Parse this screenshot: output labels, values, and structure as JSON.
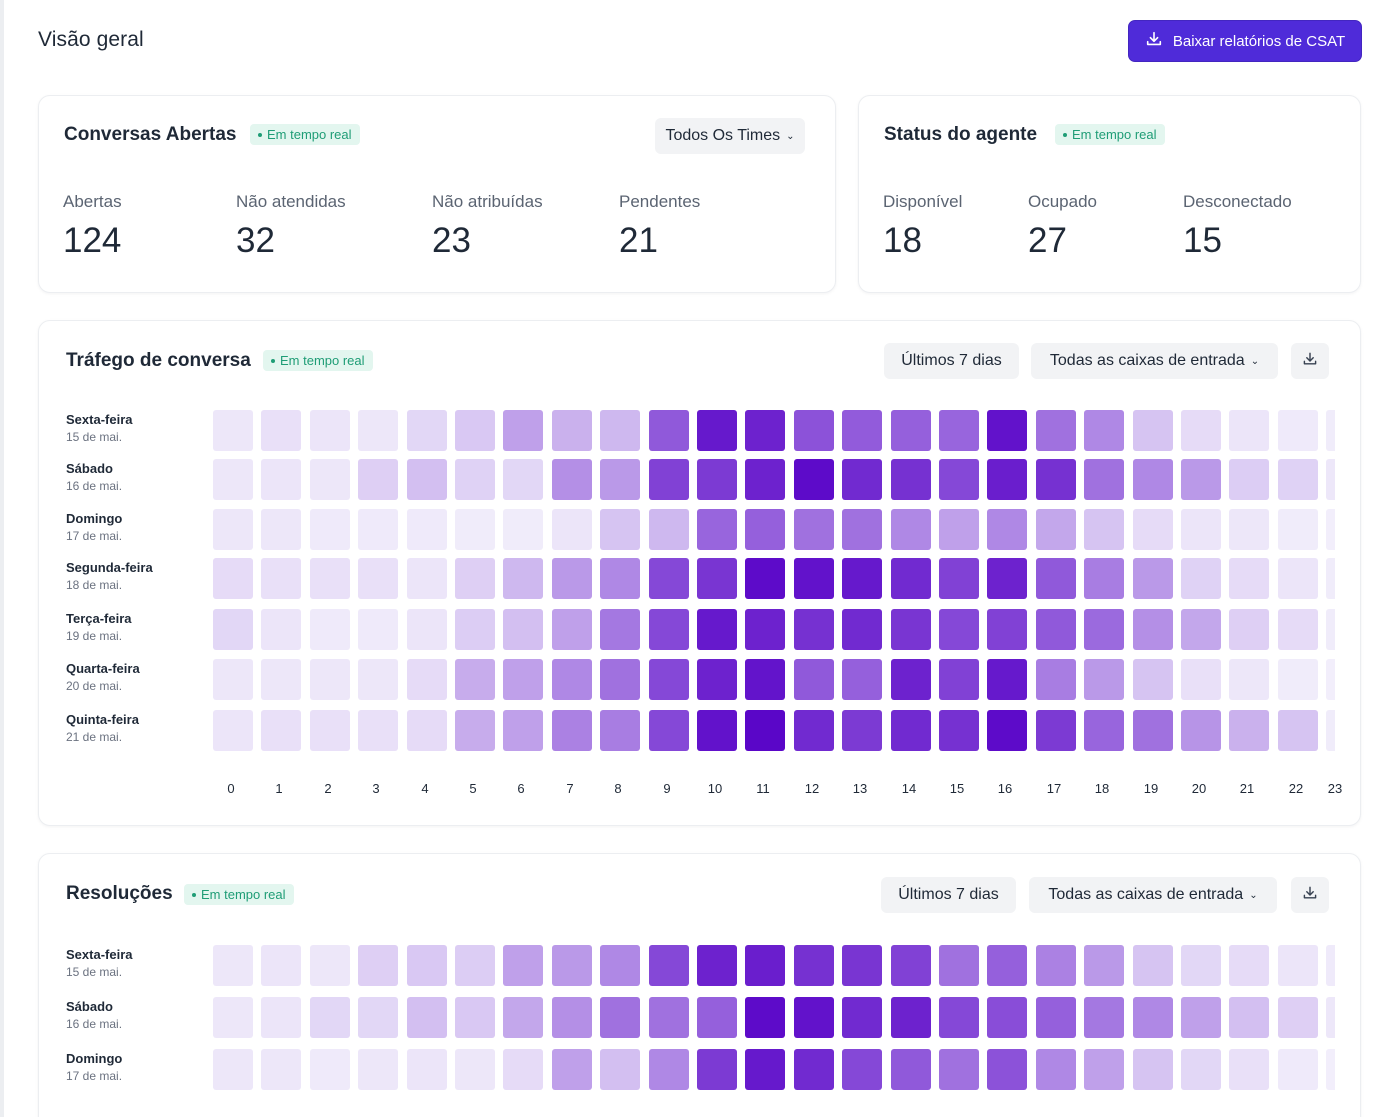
{
  "page": {
    "title": "Visão geral"
  },
  "header": {
    "download_button": "Baixar relatórios de CSAT"
  },
  "live_badge": "Em tempo real",
  "open_conversations": {
    "title": "Conversas Abertas",
    "team_filter": "Todos Os Times",
    "metrics": [
      {
        "label": "Abertas",
        "value": "124"
      },
      {
        "label": "Não atendidas",
        "value": "32"
      },
      {
        "label": "Não atribuídas",
        "value": "23"
      },
      {
        "label": "Pendentes",
        "value": "21"
      }
    ]
  },
  "agent_status": {
    "title": "Status do agente",
    "metrics": [
      {
        "label": "Disponível",
        "value": "18"
      },
      {
        "label": "Ocupado",
        "value": "27"
      },
      {
        "label": "Desconectado",
        "value": "15"
      }
    ]
  },
  "traffic": {
    "title": "Tráfego de conversa",
    "date_filter": "Últimos 7 dias",
    "inbox_filter": "Todas as caixas de entrada",
    "download_icon": "download-icon",
    "hours": [
      "0",
      "1",
      "2",
      "3",
      "4",
      "5",
      "6",
      "7",
      "8",
      "9",
      "10",
      "11",
      "12",
      "13",
      "14",
      "15",
      "16",
      "17",
      "18",
      "19",
      "20",
      "21",
      "22",
      "23"
    ],
    "rows": [
      {
        "day": "Sexta-feira",
        "date": "15 de mai.",
        "levels": [
          0.05,
          0.08,
          0.06,
          0.05,
          0.12,
          0.18,
          0.35,
          0.28,
          0.25,
          0.65,
          0.92,
          0.88,
          0.68,
          0.64,
          0.62,
          0.6,
          0.95,
          0.55,
          0.45,
          0.2,
          0.1,
          0.06,
          0.04,
          0.03
        ]
      },
      {
        "day": "Sábado",
        "date": "16 de mai.",
        "levels": [
          0.05,
          0.06,
          0.05,
          0.15,
          0.22,
          0.14,
          0.12,
          0.42,
          0.38,
          0.75,
          0.78,
          0.88,
          0.98,
          0.85,
          0.82,
          0.72,
          0.9,
          0.82,
          0.55,
          0.45,
          0.38,
          0.16,
          0.14,
          0.05
        ]
      },
      {
        "day": "Domingo",
        "date": "17 de mai.",
        "levels": [
          0.05,
          0.05,
          0.04,
          0.04,
          0.04,
          0.03,
          0.03,
          0.06,
          0.2,
          0.25,
          0.6,
          0.62,
          0.55,
          0.55,
          0.45,
          0.35,
          0.45,
          0.32,
          0.2,
          0.1,
          0.06,
          0.05,
          0.03,
          0.02
        ]
      },
      {
        "day": "Segunda-feira",
        "date": "18 de mai.",
        "levels": [
          0.1,
          0.08,
          0.08,
          0.08,
          0.06,
          0.15,
          0.25,
          0.38,
          0.45,
          0.72,
          0.8,
          0.98,
          0.95,
          0.92,
          0.85,
          0.75,
          0.88,
          0.65,
          0.5,
          0.38,
          0.14,
          0.1,
          0.06,
          0.03
        ]
      },
      {
        "day": "Terça-feira",
        "date": "19 de mai.",
        "levels": [
          0.12,
          0.06,
          0.04,
          0.04,
          0.06,
          0.16,
          0.22,
          0.35,
          0.52,
          0.72,
          0.92,
          0.88,
          0.82,
          0.85,
          0.8,
          0.72,
          0.75,
          0.65,
          0.58,
          0.42,
          0.32,
          0.15,
          0.1,
          0.03
        ]
      },
      {
        "day": "Quarta-feira",
        "date": "20 de mai.",
        "levels": [
          0.05,
          0.05,
          0.05,
          0.05,
          0.1,
          0.3,
          0.35,
          0.45,
          0.55,
          0.72,
          0.88,
          0.94,
          0.65,
          0.62,
          0.88,
          0.75,
          0.92,
          0.5,
          0.38,
          0.2,
          0.08,
          0.05,
          0.03,
          0.02
        ]
      },
      {
        "day": "Quinta-feira",
        "date": "21 de mai.",
        "levels": [
          0.06,
          0.08,
          0.08,
          0.08,
          0.1,
          0.3,
          0.35,
          0.48,
          0.5,
          0.72,
          0.95,
          1.0,
          0.85,
          0.78,
          0.85,
          0.82,
          0.98,
          0.78,
          0.6,
          0.55,
          0.4,
          0.28,
          0.2,
          0.03
        ]
      }
    ]
  },
  "resolutions": {
    "title": "Resoluções",
    "date_filter": "Últimos 7 dias",
    "inbox_filter": "Todas as caixas de entrada",
    "download_icon": "download-icon",
    "rows": [
      {
        "day": "Sexta-feira",
        "date": "15 de mai.",
        "levels": [
          0.05,
          0.06,
          0.05,
          0.15,
          0.18,
          0.16,
          0.35,
          0.38,
          0.45,
          0.72,
          0.88,
          0.9,
          0.82,
          0.8,
          0.75,
          0.55,
          0.62,
          0.48,
          0.38,
          0.2,
          0.12,
          0.1,
          0.06,
          0.04
        ]
      },
      {
        "day": "Sábado",
        "date": "16 de mai.",
        "levels": [
          0.05,
          0.06,
          0.12,
          0.12,
          0.22,
          0.18,
          0.32,
          0.42,
          0.55,
          0.55,
          0.62,
          0.98,
          0.95,
          0.85,
          0.88,
          0.72,
          0.7,
          0.62,
          0.52,
          0.45,
          0.35,
          0.22,
          0.15,
          0.05
        ]
      },
      {
        "day": "Domingo",
        "date": "17 de mai.",
        "levels": [
          0.05,
          0.05,
          0.04,
          0.05,
          0.06,
          0.05,
          0.1,
          0.35,
          0.22,
          0.45,
          0.78,
          0.92,
          0.85,
          0.72,
          0.65,
          0.55,
          0.68,
          0.45,
          0.35,
          0.2,
          0.12,
          0.08,
          0.04,
          0.02
        ]
      }
    ]
  },
  "colors": {
    "accent": "#4f2bd9",
    "heat_low": "#f5f3fc",
    "heat_high": "#5a06c8",
    "badge_bg": "#e3f6ef",
    "badge_text": "#1f9d76"
  }
}
